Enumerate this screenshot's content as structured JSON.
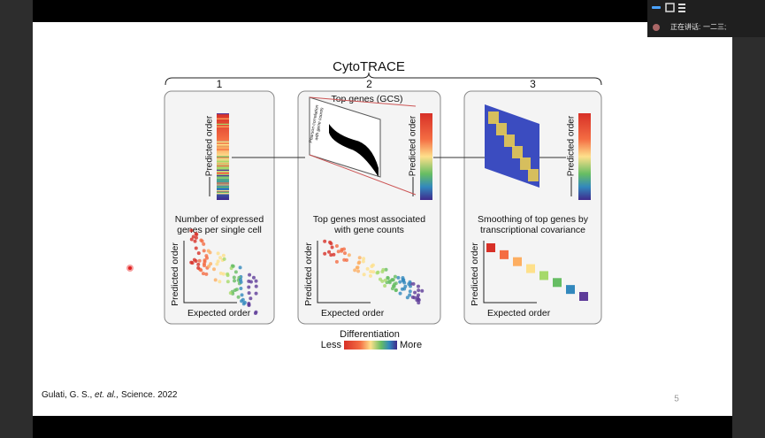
{
  "slide": {
    "title": "CytoTRACE",
    "panels": [
      {
        "number": "1",
        "bar_label": "Predicted order",
        "caption": [
          "Number of expressed",
          "genes per single cell"
        ],
        "scatter_y_label": "Predicted order",
        "scatter_x_label": "Expected order"
      },
      {
        "number": "2",
        "top_label": "Top genes (GCS)",
        "axis_note": [
          "Pearson correlation",
          "with gene counts"
        ],
        "bar_label": "Predicted order",
        "caption": [
          "Top genes most associated",
          "with gene counts"
        ],
        "scatter_y_label": "Predicted order",
        "scatter_x_label": "Expected order"
      },
      {
        "number": "3",
        "bar_label": "Predicted order",
        "caption": [
          "Smoothing of top genes by",
          "transcriptional covariance"
        ],
        "scatter_y_label": "Predicted order",
        "scatter_x_label": "Expected order"
      }
    ],
    "legend": {
      "title": "Differentiation",
      "low": "Less",
      "high": "More"
    },
    "citation": {
      "authors": "Gulati, G. S., ",
      "etal": "et. al.,",
      "journal": " Science. 2022"
    },
    "page_number": "5"
  },
  "meeting": {
    "speaking_label": "正在讲话:",
    "speaker": "一二三;"
  }
}
